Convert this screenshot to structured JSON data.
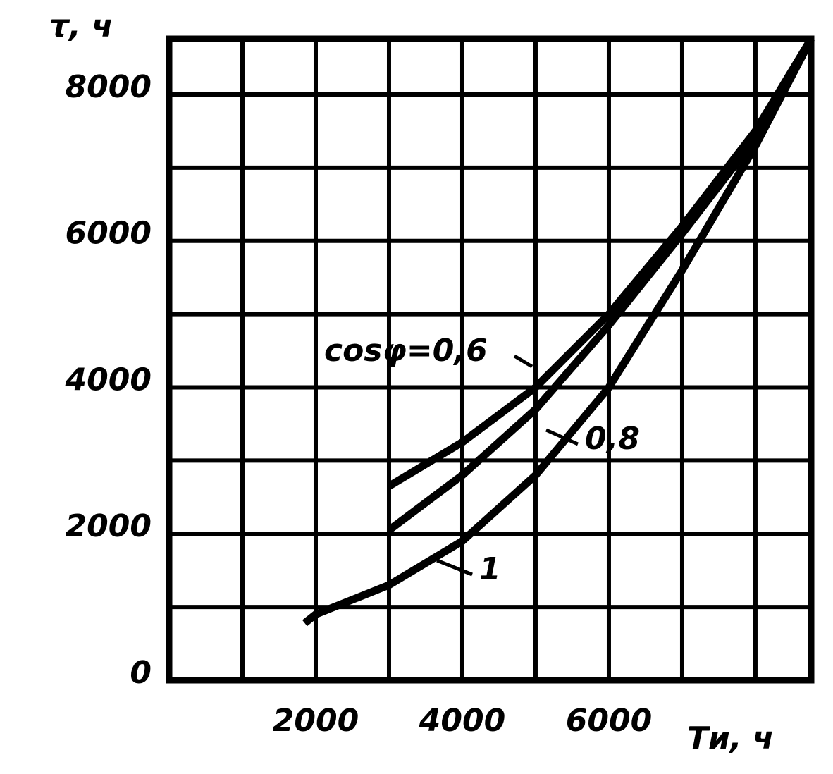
{
  "chart_data": {
    "type": "line",
    "ylabel": "τ, ч",
    "xlabel": "Tи, ч",
    "xlim": [
      0,
      8760
    ],
    "ylim": [
      0,
      8760
    ],
    "xticks": [
      2000,
      4000,
      6000
    ],
    "yticks": [
      0,
      2000,
      4000,
      6000,
      8000
    ],
    "xgrid": [
      1000,
      2000,
      3000,
      4000,
      5000,
      6000,
      7000,
      8000
    ],
    "ygrid": [
      1000,
      2000,
      3000,
      4000,
      5000,
      6000,
      7000,
      8000
    ],
    "grid": true,
    "series": [
      {
        "name": "cosφ=0,6",
        "color": "#000000",
        "x": [
          3000,
          4000,
          5000,
          6000,
          7000,
          8000,
          8760
        ],
        "values": [
          2650,
          3250,
          4000,
          5000,
          6200,
          7500,
          8760
        ]
      },
      {
        "name": "0,8",
        "color": "#000000",
        "x": [
          3000,
          4000,
          5000,
          6000,
          7000,
          8000,
          8760
        ],
        "values": [
          2050,
          2800,
          3700,
          4850,
          6100,
          7400,
          8760
        ]
      },
      {
        "name": "1",
        "color": "#000000",
        "x": [
          1850,
          2000,
          3000,
          4000,
          5000,
          6000,
          7000,
          8000,
          8760
        ],
        "values": [
          780,
          900,
          1300,
          1900,
          2800,
          4000,
          5600,
          7300,
          8760
        ]
      }
    ]
  }
}
